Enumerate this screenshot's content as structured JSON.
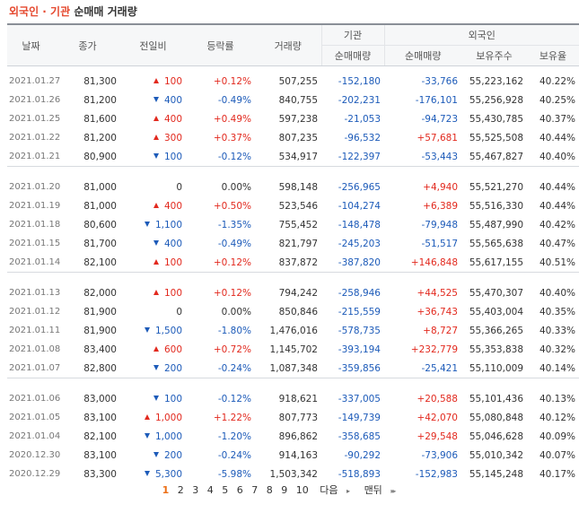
{
  "title": {
    "part1": "외국인 · 기관",
    "part2": "순매매 거래량"
  },
  "headers": {
    "date": "날짜",
    "close": "종가",
    "change": "전일비",
    "rate": "등락률",
    "volume": "거래량",
    "inst_group": "기관",
    "foreign_group": "외국인",
    "inst_net": "순매매량",
    "foreign_net": "순매매량",
    "foreign_hold": "보유주수",
    "foreign_ratio": "보유율"
  },
  "groups": [
    [
      {
        "date": "2021.01.27",
        "close": "81,300",
        "dir": "up",
        "change": "100",
        "rate": "+0.12%",
        "volume": "507,255",
        "inst": "-152,180",
        "foreign": "-33,766",
        "hold": "55,223,162",
        "ratio": "40.22%"
      },
      {
        "date": "2021.01.26",
        "close": "81,200",
        "dir": "down",
        "change": "400",
        "rate": "-0.49%",
        "volume": "840,755",
        "inst": "-202,231",
        "foreign": "-176,101",
        "hold": "55,256,928",
        "ratio": "40.25%"
      },
      {
        "date": "2021.01.25",
        "close": "81,600",
        "dir": "up",
        "change": "400",
        "rate": "+0.49%",
        "volume": "597,238",
        "inst": "-21,053",
        "foreign": "-94,723",
        "hold": "55,430,785",
        "ratio": "40.37%"
      },
      {
        "date": "2021.01.22",
        "close": "81,200",
        "dir": "up",
        "change": "300",
        "rate": "+0.37%",
        "volume": "807,235",
        "inst": "-96,532",
        "foreign": "+57,681",
        "hold": "55,525,508",
        "ratio": "40.44%"
      },
      {
        "date": "2021.01.21",
        "close": "80,900",
        "dir": "down",
        "change": "100",
        "rate": "-0.12%",
        "volume": "534,917",
        "inst": "-122,397",
        "foreign": "-53,443",
        "hold": "55,467,827",
        "ratio": "40.40%"
      }
    ],
    [
      {
        "date": "2021.01.20",
        "close": "81,000",
        "dir": "none",
        "change": "0",
        "rate": "0.00%",
        "volume": "598,148",
        "inst": "-256,965",
        "foreign": "+4,940",
        "hold": "55,521,270",
        "ratio": "40.44%"
      },
      {
        "date": "2021.01.19",
        "close": "81,000",
        "dir": "up",
        "change": "400",
        "rate": "+0.50%",
        "volume": "523,546",
        "inst": "-104,274",
        "foreign": "+6,389",
        "hold": "55,516,330",
        "ratio": "40.44%"
      },
      {
        "date": "2021.01.18",
        "close": "80,600",
        "dir": "down",
        "change": "1,100",
        "rate": "-1.35%",
        "volume": "755,452",
        "inst": "-148,478",
        "foreign": "-79,948",
        "hold": "55,487,990",
        "ratio": "40.42%"
      },
      {
        "date": "2021.01.15",
        "close": "81,700",
        "dir": "down",
        "change": "400",
        "rate": "-0.49%",
        "volume": "821,797",
        "inst": "-245,203",
        "foreign": "-51,517",
        "hold": "55,565,638",
        "ratio": "40.47%"
      },
      {
        "date": "2021.01.14",
        "close": "82,100",
        "dir": "up",
        "change": "100",
        "rate": "+0.12%",
        "volume": "837,872",
        "inst": "-387,820",
        "foreign": "+146,848",
        "hold": "55,617,155",
        "ratio": "40.51%"
      }
    ],
    [
      {
        "date": "2021.01.13",
        "close": "82,000",
        "dir": "up",
        "change": "100",
        "rate": "+0.12%",
        "volume": "794,242",
        "inst": "-258,946",
        "foreign": "+44,525",
        "hold": "55,470,307",
        "ratio": "40.40%"
      },
      {
        "date": "2021.01.12",
        "close": "81,900",
        "dir": "none",
        "change": "0",
        "rate": "0.00%",
        "volume": "850,846",
        "inst": "-215,559",
        "foreign": "+36,743",
        "hold": "55,403,004",
        "ratio": "40.35%"
      },
      {
        "date": "2021.01.11",
        "close": "81,900",
        "dir": "down",
        "change": "1,500",
        "rate": "-1.80%",
        "volume": "1,476,016",
        "inst": "-578,735",
        "foreign": "+8,727",
        "hold": "55,366,265",
        "ratio": "40.33%"
      },
      {
        "date": "2021.01.08",
        "close": "83,400",
        "dir": "up",
        "change": "600",
        "rate": "+0.72%",
        "volume": "1,145,702",
        "inst": "-393,194",
        "foreign": "+232,779",
        "hold": "55,353,838",
        "ratio": "40.32%"
      },
      {
        "date": "2021.01.07",
        "close": "82,800",
        "dir": "down",
        "change": "200",
        "rate": "-0.24%",
        "volume": "1,087,348",
        "inst": "-359,856",
        "foreign": "-25,421",
        "hold": "55,110,009",
        "ratio": "40.14%"
      }
    ],
    [
      {
        "date": "2021.01.06",
        "close": "83,000",
        "dir": "down",
        "change": "100",
        "rate": "-0.12%",
        "volume": "918,621",
        "inst": "-337,005",
        "foreign": "+20,588",
        "hold": "55,101,436",
        "ratio": "40.13%"
      },
      {
        "date": "2021.01.05",
        "close": "83,100",
        "dir": "up",
        "change": "1,000",
        "rate": "+1.22%",
        "volume": "807,773",
        "inst": "-149,739",
        "foreign": "+42,070",
        "hold": "55,080,848",
        "ratio": "40.12%"
      },
      {
        "date": "2021.01.04",
        "close": "82,100",
        "dir": "down",
        "change": "1,000",
        "rate": "-1.20%",
        "volume": "896,862",
        "inst": "-358,685",
        "foreign": "+29,548",
        "hold": "55,046,628",
        "ratio": "40.09%"
      },
      {
        "date": "2020.12.30",
        "close": "83,100",
        "dir": "down",
        "change": "200",
        "rate": "-0.24%",
        "volume": "914,163",
        "inst": "-90,292",
        "foreign": "-73,906",
        "hold": "55,010,342",
        "ratio": "40.07%"
      },
      {
        "date": "2020.12.29",
        "close": "83,300",
        "dir": "down",
        "change": "5,300",
        "rate": "-5.98%",
        "volume": "1,503,342",
        "inst": "-518,893",
        "foreign": "-152,983",
        "hold": "55,145,248",
        "ratio": "40.17%"
      }
    ]
  ],
  "pagination": {
    "current": "1",
    "pages": [
      "2",
      "3",
      "4",
      "5",
      "6",
      "7",
      "8",
      "9",
      "10"
    ],
    "next_label": "다음",
    "next_arrow": "▸",
    "last_label": "맨뒤",
    "last_arrow": "▸▸"
  },
  "colors": {
    "up": "#e2291e",
    "down": "#1d5bb9",
    "title_accent": "#e5482e",
    "current_page": "#ec6f16"
  }
}
